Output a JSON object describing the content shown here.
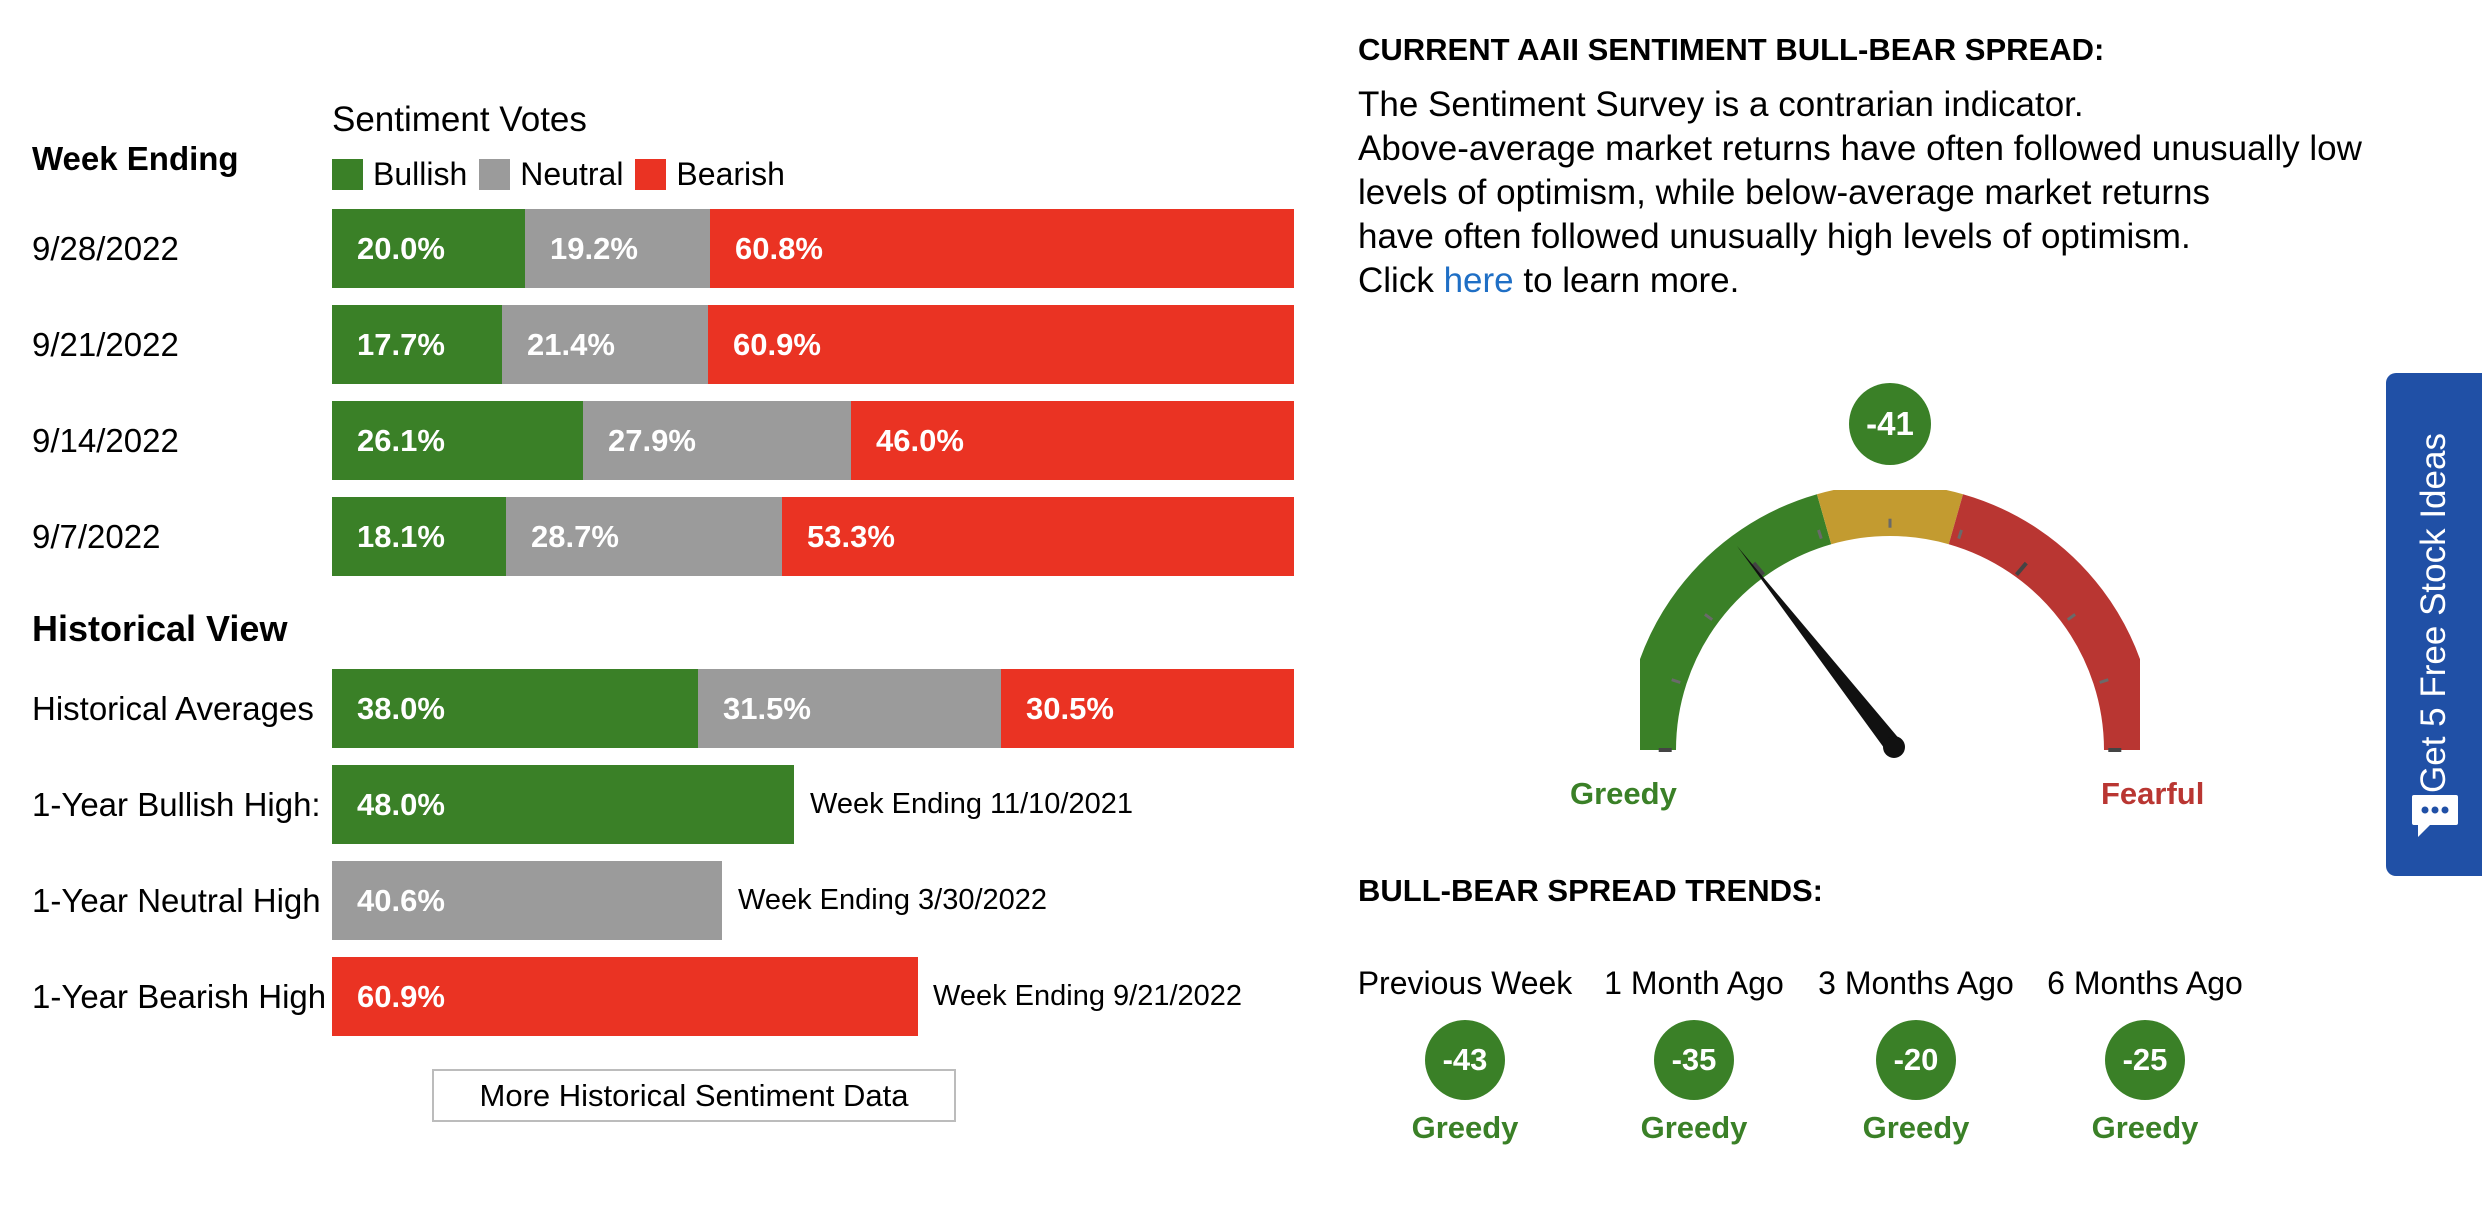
{
  "colors": {
    "bullish": "#3a8027",
    "neutral": "#9b9b9b",
    "bearish": "#ea3323",
    "fearful": "#b93632",
    "link": "#1f6fc5",
    "tab": "#2050a6"
  },
  "votes": {
    "week_ending_label": "Week Ending",
    "title": "Sentiment Votes",
    "legend": {
      "bullish": "Bullish",
      "neutral": "Neutral",
      "bearish": "Bearish"
    },
    "weeks": [
      {
        "date": "9/28/2022",
        "bullish": "20.0%",
        "neutral": "19.2%",
        "bearish": "60.8%"
      },
      {
        "date": "9/21/2022",
        "bullish": "17.7%",
        "neutral": "21.4%",
        "bearish": "60.9%"
      },
      {
        "date": "9/14/2022",
        "bullish": "26.1%",
        "neutral": "27.9%",
        "bearish": "46.0%"
      },
      {
        "date": "9/7/2022",
        "bullish": "18.1%",
        "neutral": "28.7%",
        "bearish": "53.3%"
      }
    ]
  },
  "historical": {
    "title": "Historical View",
    "averages": {
      "label": "Historical Averages",
      "bullish": "38.0%",
      "neutral": "31.5%",
      "bearish": "30.5%"
    },
    "bullish_high": {
      "label": "1-Year Bullish High:",
      "value": "48.0%",
      "week": "Week Ending 11/10/2021"
    },
    "neutral_high": {
      "label": "1-Year Neutral High",
      "value": "40.6%",
      "week": "Week Ending 3/30/2022"
    },
    "bearish_high": {
      "label": "1-Year Bearish High",
      "value": "60.9%",
      "week": "Week Ending 9/21/2022"
    },
    "more_button": "More Historical Sentiment Data"
  },
  "spread": {
    "title": "CURRENT AAII SENTIMENT BULL-BEAR SPREAD:",
    "lines": [
      "The Sentiment Survey is a contrarian indicator.",
      "Above-average market returns have often followed unusually low",
      "levels of optimism, while below-average market returns",
      "have often followed unusually high levels of optimism."
    ],
    "click_pre": "Click",
    "click_link": "here",
    "click_post": "to learn more.",
    "value": "-41",
    "greedy_label": "Greedy",
    "fearful_label": "Fearful"
  },
  "trends": {
    "title": "BULL-BEAR SPREAD TRENDS:",
    "items": [
      {
        "label": "Previous Week",
        "value": "-43",
        "status": "Greedy"
      },
      {
        "label": "1 Month Ago",
        "value": "-35",
        "status": "Greedy"
      },
      {
        "label": "3 Months Ago",
        "value": "-20",
        "status": "Greedy"
      },
      {
        "label": "6 Months Ago",
        "value": "-25",
        "status": "Greedy"
      }
    ]
  },
  "side_tab": {
    "label": "Get 5 Free Stock Ideas",
    "icon": "chat-icon"
  }
}
